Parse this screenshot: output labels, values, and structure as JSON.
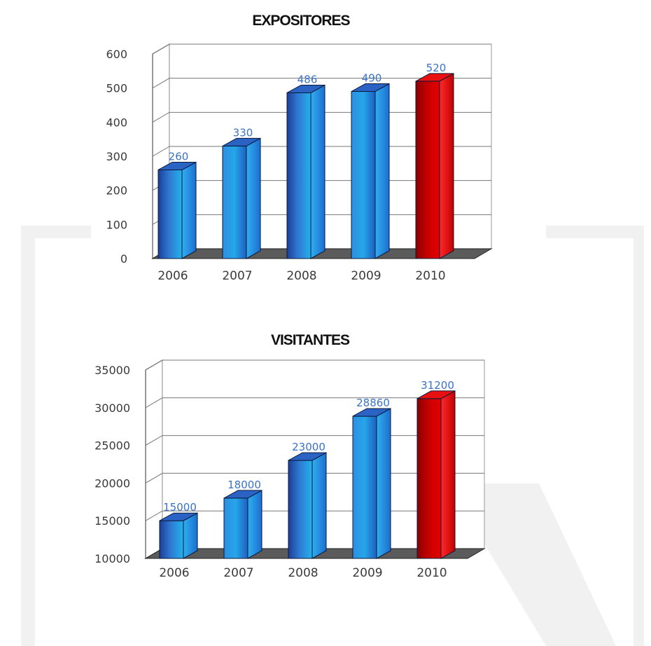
{
  "chart_data": [
    {
      "type": "bar",
      "title": "EXPOSITORES",
      "categories": [
        "2006",
        "2007",
        "2008",
        "2009",
        "2010"
      ],
      "values": [
        260,
        330,
        486,
        490,
        520
      ],
      "data_labels": [
        "260",
        "330",
        "486",
        "490",
        "520"
      ],
      "ylim": [
        0,
        600
      ],
      "yticks": [
        0,
        100,
        200,
        300,
        400,
        500,
        600
      ],
      "xlabel": "",
      "ylabel": "",
      "grid": true,
      "style": "3d-columns",
      "colors": {
        "default": [
          "#1c3f96",
          "#3a73d4",
          "#23b2ec",
          "#44c8f6"
        ],
        "highlight": [
          "#8a0000",
          "#d80000",
          "#ff2222"
        ],
        "label": "#3a72c8"
      },
      "highlight_index": 4
    },
    {
      "type": "bar",
      "title": "VISITANTES",
      "categories": [
        "2006",
        "2007",
        "2008",
        "2009",
        "2010"
      ],
      "values": [
        15000,
        18000,
        23000,
        28860,
        31200
      ],
      "data_labels": [
        "15000",
        "18000",
        "23000",
        "28860",
        "31200"
      ],
      "ylim": [
        10000,
        35000
      ],
      "yticks": [
        10000,
        15000,
        20000,
        25000,
        30000,
        35000
      ],
      "xlabel": "",
      "ylabel": "",
      "grid": true,
      "style": "3d-columns",
      "colors": {
        "default": [
          "#1c3f96",
          "#3a73d4",
          "#23b2ec",
          "#44c8f6"
        ],
        "highlight": [
          "#8a0000",
          "#d80000",
          "#ff2222"
        ],
        "label": "#3a72c8"
      },
      "highlight_index": 4
    }
  ]
}
